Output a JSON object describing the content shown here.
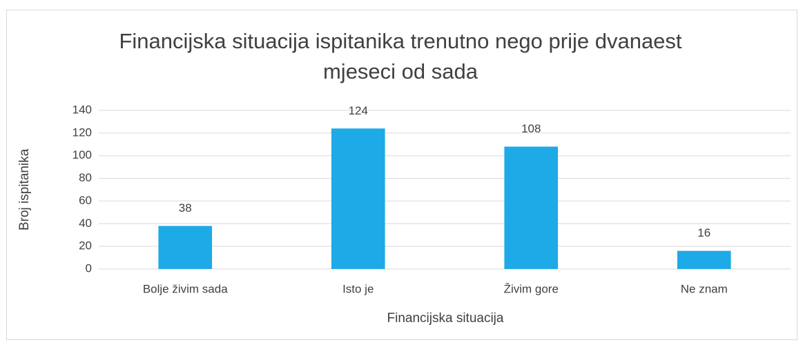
{
  "chart_data": {
    "type": "bar",
    "title": "Financijska situacija ispitanika trenutno nego prije dvanaest mjeseci od sada",
    "categories": [
      "Bolje živim sada",
      "Isto je",
      "Živim gore",
      "Ne znam"
    ],
    "values": [
      38,
      124,
      108,
      16
    ],
    "color": "#1eaae6",
    "xlabel": "Financijska situacija",
    "ylabel": "Broj ispitanika",
    "ylim": [
      0,
      140
    ],
    "yticks": [
      0,
      20,
      40,
      60,
      80,
      100,
      120,
      140
    ],
    "grid": true
  }
}
